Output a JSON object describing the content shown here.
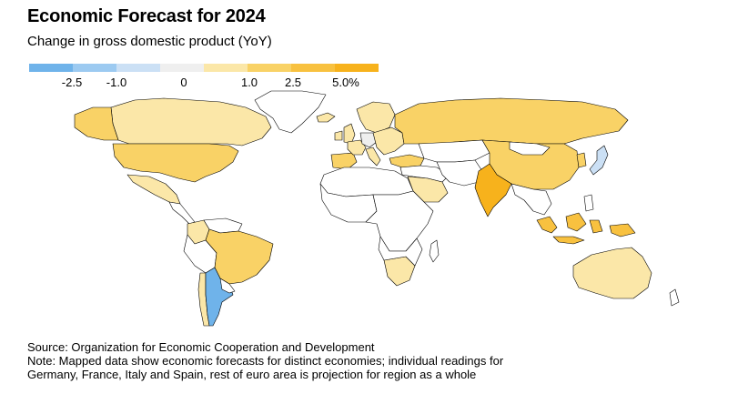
{
  "title": "Economic Forecast for 2024",
  "subtitle": "Change in gross domestic product (YoY)",
  "legend": {
    "swatch_colors": [
      "#6fb3ea",
      "#9ccaf1",
      "#cbe0f5",
      "#efefef",
      "#fbe7a8",
      "#f9d266",
      "#f8c13f",
      "#f7b21c"
    ],
    "tick_labels": [
      "-2.5",
      "-1.0",
      "0",
      "1.0",
      "2.5",
      "5.0%"
    ]
  },
  "map": {
    "colors": {
      "no_data": "#ffffff",
      "argentina": "#6fb3ea",
      "japan": "#cbe0f5",
      "germany": "#efefef",
      "band_0_1": "#fbe7a8",
      "band_1_25": "#f9d266",
      "band_25_5": "#f8c13f",
      "india": "#f7b21c",
      "border": "#000000"
    },
    "shaded_regions": [
      "Argentina",
      "Japan",
      "Germany",
      "Canada",
      "United States",
      "Mexico",
      "Brazil",
      "Chile",
      "Colombia",
      "Russia",
      "China",
      "India",
      "Indonesia",
      "Australia",
      "Saudi Arabia",
      "Turkey",
      "South Africa",
      "Europe"
    ]
  },
  "source": "Source: Organization for Economic Cooperation and Development",
  "note_line1": "Note: Mapped data show economic forecasts for distinct economies; individual readings for",
  "note_line2": "Germany, France, Italy and Spain, rest of euro area is projection for region as a whole"
}
